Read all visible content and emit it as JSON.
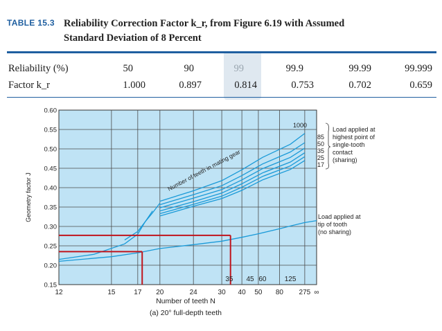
{
  "caption": {
    "label": "TABLE 15.3",
    "title_line1": "Reliability Correction Factor k_r, from Figure 6.19 with Assumed",
    "title_line2": "Standard Deviation of 8 Percent"
  },
  "table": {
    "row1_label": "Reliability (%)",
    "row2_label": "Factor k_r",
    "reliability": [
      "50",
      "90",
      "99",
      "99.9",
      "99.99",
      "99.999"
    ],
    "factor": [
      "1.000",
      "0.897",
      "0.814",
      "0.753",
      "0.702",
      "0.659"
    ]
  },
  "colors": {
    "accent": "#1f5fa0",
    "plot_bg": "#bfe3f5",
    "curve": "#1a9ad8",
    "marker": "#c0141c",
    "highlight": "#dbe6ee"
  },
  "chart_data": {
    "type": "line",
    "title": "(a) 20° full-depth teeth",
    "xlabel": "Number of teeth N",
    "ylabel": "Geometry factor J",
    "ylim": [
      0.15,
      0.6
    ],
    "yticks": [
      "0.60",
      "0.55",
      "0.50",
      "0.45",
      "0.40",
      "0.35",
      "0.30",
      "0.25",
      "0.20",
      "0.15"
    ],
    "xticks_lower": [
      "12",
      "15",
      "17",
      "20",
      "24",
      "30",
      "40",
      "50",
      "80",
      "275",
      "∞"
    ],
    "xticks_upper": [
      "35",
      "45",
      "60",
      "125"
    ],
    "curve_annotation": "Number of teeth in mating gear",
    "mating_labels": [
      "1000",
      "85",
      "50",
      "35",
      "25",
      "17"
    ],
    "legend_sharing": [
      "Load applied at",
      "highest point of",
      "single-tooth",
      "contact",
      "(sharing)"
    ],
    "legend_no_sharing": [
      "Load applied at",
      "tip of tooth",
      "(no sharing)"
    ],
    "series": [
      {
        "name": "sharing, mating 17",
        "x": [
          20,
          24,
          30,
          40,
          60,
          125,
          275
        ],
        "values": [
          0.327,
          0.352,
          0.372,
          0.393,
          0.42,
          0.447,
          0.47
        ]
      },
      {
        "name": "sharing, mating 25",
        "x": [
          20,
          24,
          30,
          40,
          60,
          125,
          275
        ],
        "values": [
          0.333,
          0.357,
          0.378,
          0.401,
          0.429,
          0.456,
          0.48
        ]
      },
      {
        "name": "sharing, mating 35",
        "x": [
          20,
          24,
          30,
          40,
          60,
          125,
          275
        ],
        "values": [
          0.34,
          0.364,
          0.386,
          0.41,
          0.438,
          0.466,
          0.49
        ]
      },
      {
        "name": "sharing, mating 50",
        "x": [
          20,
          24,
          30,
          40,
          60,
          125,
          275
        ],
        "values": [
          0.348,
          0.373,
          0.395,
          0.42,
          0.449,
          0.478,
          0.502
        ]
      },
      {
        "name": "sharing, mating 85",
        "x": [
          20,
          24,
          30,
          40,
          60,
          125,
          275
        ],
        "values": [
          0.356,
          0.382,
          0.405,
          0.431,
          0.461,
          0.492,
          0.516
        ]
      },
      {
        "name": "sharing, mating 1000",
        "x": [
          20,
          24,
          30,
          40,
          60,
          125,
          275
        ],
        "values": [
          0.365,
          0.392,
          0.418,
          0.446,
          0.478,
          0.512,
          0.54
        ]
      },
      {
        "name": "start locus",
        "x": [
          16,
          17,
          18,
          19,
          20
        ],
        "values": [
          0.265,
          0.287,
          0.312,
          0.335,
          0.36
        ]
      },
      {
        "name": "tip load (no sharing)",
        "x": [
          12,
          15,
          17,
          20,
          24,
          30,
          40,
          50,
          80,
          125,
          275,
          1000
        ],
        "values": [
          0.21,
          0.222,
          0.232,
          0.243,
          0.253,
          0.262,
          0.272,
          0.281,
          0.294,
          0.301,
          0.31,
          0.315
        ]
      },
      {
        "name": "lower blue curve",
        "x": [
          12,
          14,
          16,
          17,
          18,
          19
        ],
        "values": [
          0.215,
          0.228,
          0.255,
          0.28,
          0.312,
          0.34
        ]
      }
    ],
    "markers": [
      {
        "name": "N=17 reading",
        "x": 17.6,
        "y": 0.235
      },
      {
        "name": "N=35 reading",
        "x": 35.5,
        "y": 0.277
      }
    ]
  }
}
